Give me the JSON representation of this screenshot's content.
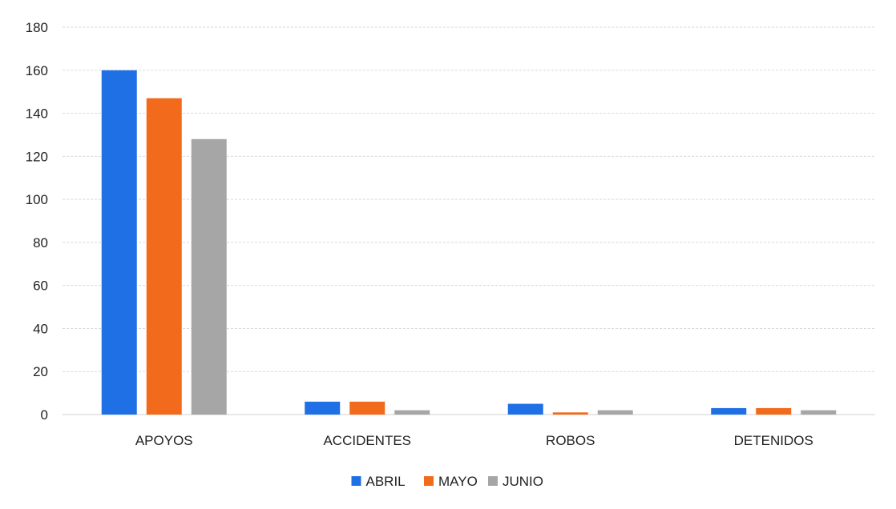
{
  "chart_data": {
    "type": "bar",
    "categories": [
      "APOYOS",
      "ACCIDENTES",
      "ROBOS",
      "DETENIDOS"
    ],
    "series": [
      {
        "name": "ABRIL",
        "color": "#1f6fe5",
        "values": [
          160,
          6,
          5,
          3
        ]
      },
      {
        "name": "MAYO",
        "color": "#f26a1b",
        "values": [
          147,
          6,
          1,
          3
        ]
      },
      {
        "name": "JUNIO",
        "color": "#a6a6a6",
        "values": [
          128,
          2,
          2,
          2
        ]
      }
    ],
    "title": "",
    "xlabel": "",
    "ylabel": "",
    "ylim": [
      0,
      180
    ],
    "yticks": [
      0,
      20,
      40,
      60,
      80,
      100,
      120,
      140,
      160,
      180
    ],
    "grid": true,
    "legend_position": "bottom-center"
  }
}
